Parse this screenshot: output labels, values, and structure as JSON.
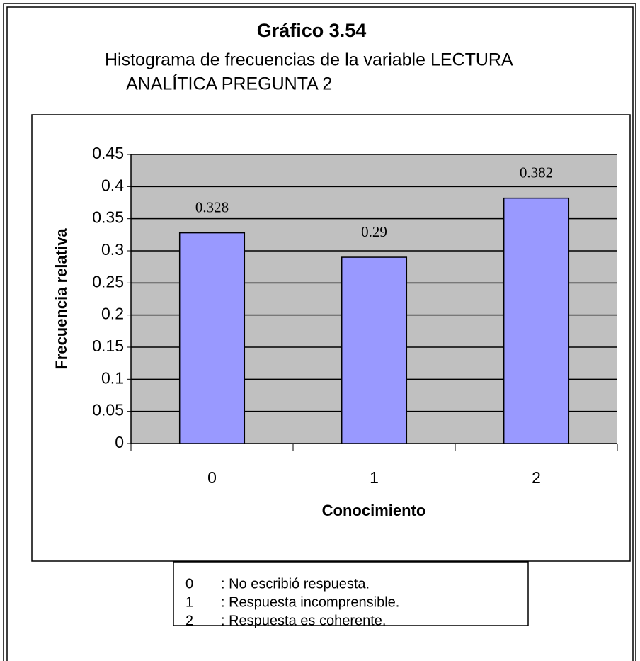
{
  "chart_data": {
    "type": "bar",
    "title": "Gráfico 3.54",
    "subtitle": [
      "Histograma de frecuencias de la variable LECTURA",
      "ANALÍTICA  PREGUNTA 2"
    ],
    "categories": [
      "0",
      "1",
      "2"
    ],
    "values": [
      0.328,
      0.29,
      0.382
    ],
    "color": "#9999ff",
    "ylim": [
      0,
      0.45
    ],
    "yticks": [
      0,
      0.05,
      0.1,
      0.15,
      0.2,
      0.25,
      0.3,
      0.35,
      0.4,
      0.45
    ],
    "ylabel": "Frecuencia relativa",
    "xlabel": "Conocimiento",
    "grid": true,
    "legend_notes": [
      {
        "code": "0",
        "text": ": No escribió respuesta."
      },
      {
        "code": "1",
        "text": ": Respuesta  incomprensible."
      },
      {
        "code": "2",
        "text": ": Respuesta es coherente."
      }
    ]
  }
}
